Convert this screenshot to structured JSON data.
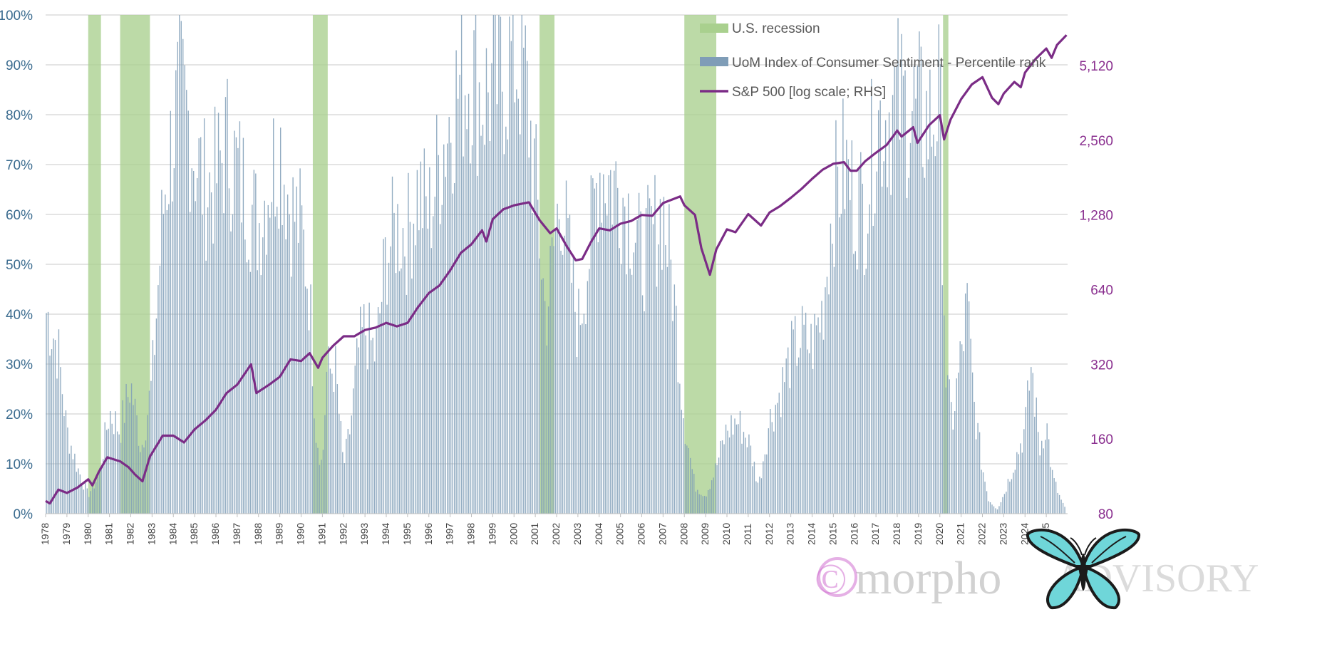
{
  "chart_data": {
    "type": "bar",
    "title": "",
    "xlabel": "",
    "ylabel": "",
    "x_ticks": [
      "1978",
      "1979",
      "1980",
      "1981",
      "1982",
      "1983",
      "1984",
      "1985",
      "1986",
      "1987",
      "1988",
      "1989",
      "1990",
      "1991",
      "1992",
      "1993",
      "1994",
      "1995",
      "1996",
      "1997",
      "1998",
      "1999",
      "2000",
      "2001",
      "2002",
      "2003",
      "2004",
      "2005",
      "2006",
      "2007",
      "2008",
      "2009",
      "2010",
      "2011",
      "2012",
      "2013",
      "2014",
      "2015",
      "2016",
      "2017",
      "2018",
      "2019",
      "2020",
      "2021",
      "2022",
      "2023",
      "2024",
      "2025"
    ],
    "x_range": [
      1978.0,
      2026.0
    ],
    "y_left": {
      "ylim": [
        0,
        100
      ],
      "ticks": [
        0,
        10,
        20,
        30,
        40,
        50,
        60,
        70,
        80,
        90,
        100
      ],
      "tick_labels": [
        "0%",
        "10%",
        "20%",
        "30%",
        "40%",
        "50%",
        "60%",
        "70%",
        "80%",
        "90%",
        "100%"
      ]
    },
    "y_right": {
      "scale": "log2",
      "ylim": [
        80,
        8192
      ],
      "ticks": [
        80,
        160,
        320,
        640,
        1280,
        2560,
        5120
      ],
      "tick_labels": [
        "80",
        "160",
        "320",
        "640",
        "1,280",
        "2,560",
        "5,120"
      ]
    },
    "grid": true,
    "legend_position": "top-center",
    "legend": [
      {
        "key": "recession",
        "label": "U.S. recession",
        "color": "#a9d08e"
      },
      {
        "key": "sentiment",
        "label": "UoM Index of Consumer Sentiment  -  Percentile rank",
        "color": "#8ea9c1"
      },
      {
        "key": "sp500",
        "label": "S&P 500 [log scale; RHS]",
        "color": "#7b2c86"
      }
    ],
    "recessions": [
      [
        1980.0,
        1980.6
      ],
      [
        1981.5,
        1982.9
      ],
      [
        1990.55,
        1991.25
      ],
      [
        2001.2,
        2001.9
      ],
      [
        2008.0,
        2009.5
      ],
      [
        2020.15,
        2020.4
      ]
    ],
    "sentiment_percentile_anchors": [
      [
        1978.0,
        44
      ],
      [
        1978.3,
        40
      ],
      [
        1978.6,
        35
      ],
      [
        1979.0,
        18
      ],
      [
        1979.5,
        10
      ],
      [
        1980.0,
        4
      ],
      [
        1980.5,
        8
      ],
      [
        1981.0,
        22
      ],
      [
        1981.5,
        18
      ],
      [
        1982.0,
        28
      ],
      [
        1982.5,
        14
      ],
      [
        1983.0,
        28
      ],
      [
        1983.3,
        50
      ],
      [
        1983.6,
        70
      ],
      [
        1984.0,
        82
      ],
      [
        1984.3,
        90
      ],
      [
        1984.7,
        85
      ],
      [
        1985.0,
        78
      ],
      [
        1985.5,
        70
      ],
      [
        1986.0,
        72
      ],
      [
        1986.5,
        80
      ],
      [
        1987.0,
        74
      ],
      [
        1987.5,
        68
      ],
      [
        1988.0,
        62
      ],
      [
        1988.5,
        72
      ],
      [
        1989.0,
        80
      ],
      [
        1989.5,
        66
      ],
      [
        1990.0,
        62
      ],
      [
        1990.4,
        48
      ],
      [
        1990.7,
        18
      ],
      [
        1991.0,
        10
      ],
      [
        1991.2,
        30
      ],
      [
        1991.6,
        32
      ],
      [
        1992.0,
        10
      ],
      [
        1992.3,
        18
      ],
      [
        1992.7,
        35
      ],
      [
        1993.0,
        40
      ],
      [
        1993.5,
        34
      ],
      [
        1994.0,
        56
      ],
      [
        1994.5,
        62
      ],
      [
        1995.0,
        60
      ],
      [
        1995.5,
        70
      ],
      [
        1996.0,
        64
      ],
      [
        1996.5,
        76
      ],
      [
        1997.0,
        86
      ],
      [
        1997.5,
        93
      ],
      [
        1998.0,
        96
      ],
      [
        1998.5,
        90
      ],
      [
        1999.0,
        92
      ],
      [
        1999.5,
        95
      ],
      [
        2000.0,
        99
      ],
      [
        2000.5,
        95
      ],
      [
        2001.0,
        72
      ],
      [
        2001.5,
        42
      ],
      [
        2001.9,
        58
      ],
      [
        2002.2,
        70
      ],
      [
        2002.6,
        55
      ],
      [
        2003.0,
        40
      ],
      [
        2003.5,
        55
      ],
      [
        2004.0,
        75
      ],
      [
        2004.5,
        72
      ],
      [
        2005.0,
        70
      ],
      [
        2005.5,
        64
      ],
      [
        2006.0,
        55
      ],
      [
        2006.5,
        60
      ],
      [
        2007.0,
        66
      ],
      [
        2007.5,
        48
      ],
      [
        2008.0,
        20
      ],
      [
        2008.5,
        6
      ],
      [
        2009.0,
        4
      ],
      [
        2009.5,
        10
      ],
      [
        2010.0,
        18
      ],
      [
        2010.5,
        20
      ],
      [
        2011.0,
        16
      ],
      [
        2011.5,
        6
      ],
      [
        2012.0,
        20
      ],
      [
        2012.5,
        26
      ],
      [
        2013.0,
        34
      ],
      [
        2013.5,
        38
      ],
      [
        2014.0,
        36
      ],
      [
        2014.5,
        44
      ],
      [
        2015.0,
        68
      ],
      [
        2015.5,
        75
      ],
      [
        2016.0,
        68
      ],
      [
        2016.5,
        66
      ],
      [
        2017.0,
        84
      ],
      [
        2017.5,
        86
      ],
      [
        2018.0,
        89
      ],
      [
        2018.5,
        87
      ],
      [
        2019.0,
        86
      ],
      [
        2019.5,
        84
      ],
      [
        2020.0,
        89
      ],
      [
        2020.3,
        28
      ],
      [
        2020.6,
        20
      ],
      [
        2021.0,
        34
      ],
      [
        2021.3,
        45
      ],
      [
        2021.6,
        24
      ],
      [
        2022.0,
        10
      ],
      [
        2022.3,
        3
      ],
      [
        2022.7,
        1
      ],
      [
        2023.0,
        4
      ],
      [
        2023.5,
        11
      ],
      [
        2024.0,
        18
      ],
      [
        2024.3,
        32
      ],
      [
        2024.7,
        14
      ],
      [
        2025.0,
        20
      ],
      [
        2025.3,
        8
      ],
      [
        2025.6,
        4
      ],
      [
        2025.9,
        1
      ]
    ],
    "sp500_anchors": [
      [
        1978.0,
        90
      ],
      [
        1978.2,
        88
      ],
      [
        1978.6,
        100
      ],
      [
        1979.0,
        97
      ],
      [
        1979.5,
        102
      ],
      [
        1980.0,
        110
      ],
      [
        1980.2,
        104
      ],
      [
        1980.5,
        118
      ],
      [
        1980.9,
        135
      ],
      [
        1981.5,
        130
      ],
      [
        1981.9,
        123
      ],
      [
        1982.2,
        115
      ],
      [
        1982.55,
        108
      ],
      [
        1982.9,
        136
      ],
      [
        1983.5,
        165
      ],
      [
        1984.0,
        165
      ],
      [
        1984.5,
        155
      ],
      [
        1985.0,
        175
      ],
      [
        1985.5,
        190
      ],
      [
        1986.0,
        210
      ],
      [
        1986.5,
        245
      ],
      [
        1987.0,
        265
      ],
      [
        1987.65,
        320
      ],
      [
        1987.9,
        245
      ],
      [
        1988.5,
        265
      ],
      [
        1989.0,
        285
      ],
      [
        1989.5,
        335
      ],
      [
        1990.0,
        330
      ],
      [
        1990.4,
        355
      ],
      [
        1990.8,
        310
      ],
      [
        1991.0,
        340
      ],
      [
        1991.5,
        380
      ],
      [
        1992.0,
        415
      ],
      [
        1992.5,
        415
      ],
      [
        1993.0,
        440
      ],
      [
        1993.5,
        450
      ],
      [
        1994.0,
        470
      ],
      [
        1994.5,
        455
      ],
      [
        1995.0,
        470
      ],
      [
        1995.5,
        545
      ],
      [
        1996.0,
        620
      ],
      [
        1996.5,
        665
      ],
      [
        1997.0,
        765
      ],
      [
        1997.5,
        900
      ],
      [
        1998.0,
        975
      ],
      [
        1998.5,
        1110
      ],
      [
        1998.7,
        1000
      ],
      [
        1999.0,
        1230
      ],
      [
        1999.5,
        1350
      ],
      [
        2000.0,
        1400
      ],
      [
        2000.7,
        1440
      ],
      [
        2001.2,
        1220
      ],
      [
        2001.7,
        1080
      ],
      [
        2002.0,
        1130
      ],
      [
        2002.5,
        950
      ],
      [
        2002.9,
        840
      ],
      [
        2003.2,
        850
      ],
      [
        2003.6,
        990
      ],
      [
        2004.0,
        1130
      ],
      [
        2004.5,
        1110
      ],
      [
        2005.0,
        1180
      ],
      [
        2005.5,
        1210
      ],
      [
        2006.0,
        1280
      ],
      [
        2006.5,
        1270
      ],
      [
        2007.0,
        1430
      ],
      [
        2007.8,
        1520
      ],
      [
        2008.0,
        1400
      ],
      [
        2008.5,
        1280
      ],
      [
        2008.8,
        940
      ],
      [
        2009.2,
        735
      ],
      [
        2009.5,
        930
      ],
      [
        2010.0,
        1120
      ],
      [
        2010.4,
        1090
      ],
      [
        2011.0,
        1290
      ],
      [
        2011.6,
        1160
      ],
      [
        2012.0,
        1310
      ],
      [
        2012.5,
        1390
      ],
      [
        2013.0,
        1500
      ],
      [
        2013.5,
        1630
      ],
      [
        2014.0,
        1790
      ],
      [
        2014.5,
        1950
      ],
      [
        2015.0,
        2060
      ],
      [
        2015.5,
        2090
      ],
      [
        2015.8,
        1930
      ],
      [
        2016.1,
        1930
      ],
      [
        2016.5,
        2110
      ],
      [
        2017.0,
        2280
      ],
      [
        2017.5,
        2450
      ],
      [
        2018.0,
        2800
      ],
      [
        2018.2,
        2650
      ],
      [
        2018.75,
        2890
      ],
      [
        2018.95,
        2500
      ],
      [
        2019.5,
        2950
      ],
      [
        2020.0,
        3230
      ],
      [
        2020.2,
        2580
      ],
      [
        2020.5,
        3100
      ],
      [
        2021.0,
        3750
      ],
      [
        2021.5,
        4300
      ],
      [
        2022.0,
        4600
      ],
      [
        2022.45,
        3800
      ],
      [
        2022.75,
        3580
      ],
      [
        2023.0,
        3950
      ],
      [
        2023.5,
        4400
      ],
      [
        2023.8,
        4190
      ],
      [
        2024.0,
        4800
      ],
      [
        2024.5,
        5450
      ],
      [
        2025.0,
        6000
      ],
      [
        2025.25,
        5500
      ],
      [
        2025.5,
        6200
      ],
      [
        2025.95,
        6800
      ]
    ]
  },
  "watermark": {
    "copyright_symbol": "©",
    "word1": "morpho",
    "word2": "ADVISORY"
  }
}
